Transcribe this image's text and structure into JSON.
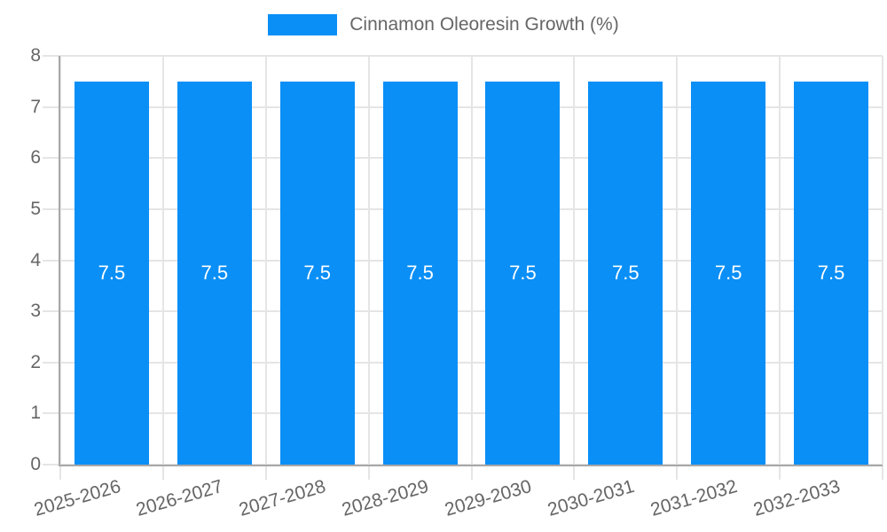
{
  "legend": {
    "label": "Cinnamon Oleoresin Growth (%)",
    "swatch_color": "#0a8ff7"
  },
  "chart_data": {
    "type": "bar",
    "title": "",
    "xlabel": "",
    "ylabel": "",
    "categories": [
      "2025-2026",
      "2026-2027",
      "2027-2028",
      "2028-2029",
      "2029-2030",
      "2030-2031",
      "2031-2032",
      "2032-2033"
    ],
    "series": [
      {
        "name": "Cinnamon Oleoresin Growth (%)",
        "values": [
          7.5,
          7.5,
          7.5,
          7.5,
          7.5,
          7.5,
          7.5,
          7.5
        ]
      }
    ],
    "bar_labels": [
      "7.5",
      "7.5",
      "7.5",
      "7.5",
      "7.5",
      "7.5",
      "7.5",
      "7.5"
    ],
    "ylim": [
      0,
      8
    ],
    "ytick_step": 1,
    "ytick_labels": [
      "0",
      "1",
      "2",
      "3",
      "4",
      "5",
      "6",
      "7",
      "8"
    ],
    "grid": true,
    "legend_position": "top",
    "colors": {
      "bar": "#0a8ff7",
      "bar_label": "#ffffff",
      "axis_line": "#a8a8a8",
      "grid_line": "#e5e5e5",
      "tick_text": "#666666"
    }
  }
}
